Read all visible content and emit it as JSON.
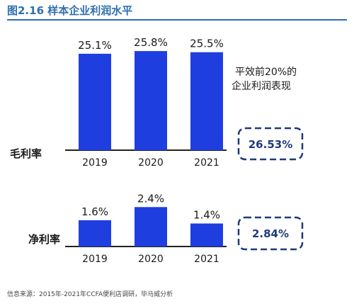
{
  "title": "图2.16 样本企业利润水平",
  "source": "信息来源：2015年-2021年CCFA便利店调研，毕马威分析",
  "colors": {
    "title": "#2f6fb0",
    "bar": "#1f3ee0",
    "box": "#1f3a7a"
  },
  "chart_data": [
    {
      "type": "bar",
      "row_label": "毛利率",
      "categories": [
        "2019",
        "2020",
        "2021"
      ],
      "values": [
        25.1,
        25.8,
        25.5
      ],
      "value_labels": [
        "25.1%",
        "25.8%",
        "25.5%"
      ],
      "unit": "%",
      "ylim": [
        0,
        26
      ],
      "grid": false,
      "annotation": {
        "note_lines": [
          "平效前20%的",
          "企业利润表现"
        ],
        "boxed_value": "26.53%"
      }
    },
    {
      "type": "bar",
      "row_label": "净利率",
      "categories": [
        "2019",
        "2020",
        "2021"
      ],
      "values": [
        1.6,
        2.4,
        1.4
      ],
      "value_labels": [
        "1.6%",
        "2.4%",
        "1.4%"
      ],
      "unit": "%",
      "ylim": [
        0,
        2.5
      ],
      "grid": false,
      "annotation": {
        "boxed_value": "2.84%"
      }
    }
  ]
}
